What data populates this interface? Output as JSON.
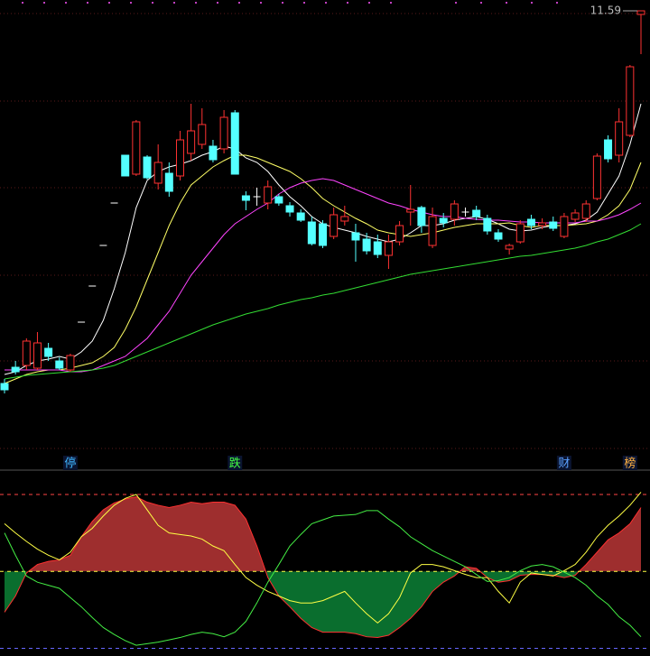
{
  "chart_data": [
    {
      "type": "candlestick",
      "ylim": [
        1.83,
        11.83
      ],
      "up_color": "#ff3232",
      "down_color": "#54ffff",
      "flat_color": "#ffffff",
      "open": [
        3.33,
        3.69,
        3.73,
        3.67,
        4.11,
        3.83,
        3.63,
        4.69,
        5.49,
        6.39,
        7.33,
        8.39,
        7.97,
        8.35,
        7.77,
        7.99,
        7.93,
        8.43,
        8.63,
        8.59,
        8.53,
        9.33,
        7.49,
        7.47,
        7.33,
        7.47,
        7.27,
        7.11,
        6.91,
        6.87,
        6.59,
        6.93,
        6.67,
        6.53,
        6.47,
        6.17,
        6.47,
        7.13,
        7.23,
        6.39,
        6.99,
        6.97,
        7.13,
        7.17,
        6.99,
        6.67,
        6.31,
        6.47,
        6.97,
        6.83,
        6.91,
        6.59,
        6.97,
        6.99,
        7.43,
        8.73,
        8.39,
        8.83,
        11.51
      ],
      "high": [
        3.43,
        3.83,
        4.33,
        4.47,
        4.23,
        3.91,
        3.99,
        4.69,
        5.49,
        6.39,
        7.33,
        8.39,
        9.17,
        8.39,
        8.63,
        8.23,
        8.93,
        9.53,
        9.43,
        8.73,
        9.39,
        9.39,
        7.59,
        7.67,
        7.83,
        7.53,
        7.35,
        7.19,
        7.03,
        6.95,
        7.23,
        7.27,
        6.87,
        6.67,
        6.63,
        6.63,
        6.93,
        7.73,
        7.27,
        7.23,
        7.11,
        7.39,
        7.23,
        7.27,
        7.07,
        6.75,
        6.43,
        6.95,
        7.07,
        6.99,
        7.03,
        7.11,
        7.19,
        7.39,
        8.43,
        8.83,
        9.43,
        10.39,
        11.59
      ],
      "low": [
        3.11,
        3.53,
        3.63,
        3.63,
        3.83,
        3.63,
        3.59,
        4.69,
        5.49,
        6.39,
        7.33,
        7.93,
        7.93,
        7.85,
        7.63,
        7.47,
        7.83,
        8.27,
        8.53,
        8.23,
        8.43,
        7.97,
        7.17,
        7.27,
        7.19,
        7.27,
        7.03,
        6.91,
        6.39,
        6.33,
        6.53,
        6.83,
        6.03,
        6.19,
        6.11,
        5.87,
        6.39,
        6.83,
        6.67,
        6.33,
        6.79,
        6.83,
        7.03,
        6.95,
        6.63,
        6.47,
        6.19,
        6.43,
        6.75,
        6.75,
        6.71,
        6.55,
        6.91,
        6.91,
        7.39,
        8.23,
        8.23,
        8.79,
        10.63
      ],
      "close": [
        3.19,
        3.59,
        4.27,
        4.23,
        3.93,
        3.67,
        3.95,
        4.69,
        5.49,
        6.39,
        7.33,
        7.93,
        9.13,
        7.89,
        8.23,
        7.59,
        8.73,
        8.93,
        9.07,
        8.29,
        9.23,
        7.97,
        7.39,
        7.47,
        7.69,
        7.33,
        7.13,
        6.95,
        6.43,
        6.39,
        7.07,
        7.03,
        6.51,
        6.27,
        6.19,
        6.47,
        6.83,
        7.19,
        6.83,
        7.03,
        6.89,
        7.31,
        7.13,
        7.03,
        6.71,
        6.53,
        6.39,
        6.87,
        6.83,
        6.89,
        6.77,
        7.03,
        7.11,
        7.31,
        8.37,
        8.31,
        9.13,
        10.35,
        11.59
      ],
      "series": [
        {
          "color": "#ffffff",
          "values": [
            3.53,
            3.59,
            3.73,
            3.83,
            3.87,
            3.93,
            3.87,
            4.03,
            4.27,
            4.73,
            5.43,
            6.23,
            7.23,
            7.83,
            8.03,
            8.13,
            8.19,
            8.27,
            8.39,
            8.47,
            8.59,
            8.53,
            8.33,
            8.23,
            8.03,
            7.73,
            7.47,
            7.27,
            7.03,
            6.87,
            6.79,
            6.73,
            6.67,
            6.59,
            6.53,
            6.47,
            6.53,
            6.67,
            6.83,
            6.83,
            6.87,
            6.95,
            6.99,
            7.03,
            6.97,
            6.87,
            6.75,
            6.71,
            6.73,
            6.79,
            6.83,
            6.83,
            6.87,
            6.95,
            7.13,
            7.53,
            7.93,
            8.63,
            9.53
          ]
        },
        {
          "color": "#ffff66",
          "values": [
            3.33,
            3.43,
            3.53,
            3.59,
            3.63,
            3.63,
            3.67,
            3.73,
            3.79,
            3.93,
            4.13,
            4.53,
            5.03,
            5.63,
            6.23,
            6.83,
            7.33,
            7.73,
            7.93,
            8.13,
            8.27,
            8.39,
            8.39,
            8.33,
            8.23,
            8.13,
            8.03,
            7.87,
            7.67,
            7.43,
            7.27,
            7.13,
            6.99,
            6.87,
            6.73,
            6.67,
            6.63,
            6.59,
            6.63,
            6.67,
            6.73,
            6.79,
            6.83,
            6.87,
            6.87,
            6.87,
            6.89,
            6.83,
            6.79,
            6.83,
            6.83,
            6.83,
            6.85,
            6.87,
            6.93,
            7.07,
            7.27,
            7.63,
            8.23
          ]
        },
        {
          "color": "#ff44ff",
          "values": [
            3.63,
            3.63,
            3.63,
            3.63,
            3.63,
            3.63,
            3.59,
            3.59,
            3.63,
            3.73,
            3.83,
            3.93,
            4.13,
            4.33,
            4.63,
            4.93,
            5.33,
            5.73,
            6.03,
            6.33,
            6.63,
            6.87,
            7.03,
            7.19,
            7.33,
            7.53,
            7.67,
            7.77,
            7.83,
            7.87,
            7.83,
            7.73,
            7.63,
            7.53,
            7.43,
            7.33,
            7.27,
            7.19,
            7.13,
            7.07,
            7.03,
            7.03,
            6.99,
            6.97,
            6.95,
            6.95,
            6.93,
            6.91,
            6.91,
            6.89,
            6.89,
            6.89,
            6.89,
            6.93,
            6.93,
            6.99,
            7.07,
            7.19,
            7.33
          ]
        },
        {
          "color": "#33dd33",
          "values": [
            3.43,
            3.47,
            3.51,
            3.53,
            3.55,
            3.57,
            3.59,
            3.61,
            3.63,
            3.67,
            3.73,
            3.83,
            3.93,
            4.03,
            4.13,
            4.23,
            4.33,
            4.43,
            4.53,
            4.63,
            4.71,
            4.79,
            4.87,
            4.93,
            4.99,
            5.07,
            5.13,
            5.19,
            5.23,
            5.29,
            5.33,
            5.39,
            5.45,
            5.51,
            5.57,
            5.63,
            5.69,
            5.75,
            5.79,
            5.83,
            5.87,
            5.91,
            5.95,
            5.99,
            6.03,
            6.07,
            6.11,
            6.15,
            6.17,
            6.21,
            6.25,
            6.29,
            6.33,
            6.39,
            6.47,
            6.53,
            6.63,
            6.73,
            6.87
          ]
        }
      ],
      "max_label": 11.59,
      "signals": [
        null,
        null,
        null,
        null,
        null,
        null,
        {
          "label": "停",
          "color": "#3fb6ff"
        },
        null,
        null,
        null,
        null,
        null,
        null,
        null,
        null,
        null,
        null,
        null,
        null,
        null,
        null,
        {
          "label": "跌",
          "color": "#44ff44"
        },
        null,
        null,
        null,
        null,
        null,
        null,
        null,
        null,
        null,
        null,
        null,
        null,
        null,
        null,
        null,
        null,
        null,
        null,
        null,
        null,
        null,
        null,
        null,
        null,
        null,
        null,
        null,
        null,
        null,
        {
          "label": "财",
          "color": "#5aa0ff"
        },
        null,
        null,
        null,
        null,
        null,
        {
          "label": "榜",
          "color": "#ffb040"
        },
        null
      ]
    },
    {
      "type": "oscillator",
      "ylim": [
        -110,
        127
      ],
      "levels": [
        {
          "value": 100,
          "color": "#ff4444"
        },
        {
          "value": 0,
          "color": "#ffff44"
        },
        {
          "value": -100,
          "color": "#6666ff"
        }
      ],
      "pos_color": "#9e2e2e",
      "neg_color": "#0a6e2e",
      "edge_color": "#ff3030",
      "values": [
        -53,
        -32,
        -2,
        9,
        13,
        15,
        21,
        45,
        65,
        80,
        89,
        94,
        97,
        90,
        86,
        83,
        86,
        90,
        88,
        90,
        90,
        86,
        68,
        33,
        -8,
        -32,
        -46,
        -61,
        -73,
        -79,
        -79,
        -79,
        -81,
        -85,
        -86,
        -83,
        -73,
        -61,
        -46,
        -26,
        -14,
        -6,
        6,
        4,
        -8,
        -14,
        -12,
        -5,
        -4,
        -4,
        -5,
        -8,
        -5,
        9,
        25,
        41,
        50,
        62,
        83
      ],
      "series": [
        {
          "color": "#ffff44",
          "values": [
            62,
            50,
            39,
            29,
            21,
            15,
            25,
            45,
            56,
            72,
            86,
            95,
            100,
            80,
            60,
            50,
            48,
            46,
            42,
            33,
            27,
            9,
            -8,
            -18,
            -26,
            -32,
            -38,
            -41,
            -41,
            -38,
            -32,
            -26,
            -41,
            -55,
            -67,
            -55,
            -34,
            -2,
            9,
            9,
            6,
            1,
            -4,
            -8,
            -8,
            -26,
            -41,
            -14,
            -2,
            -4,
            -6,
            1,
            9,
            25,
            45,
            60,
            72,
            86,
            103
          ]
        },
        {
          "color": "#44ee44",
          "values": [
            50,
            21,
            -6,
            -14,
            -18,
            -22,
            -34,
            -46,
            -60,
            -73,
            -82,
            -90,
            -96,
            -94,
            -92,
            -89,
            -86,
            -82,
            -79,
            -81,
            -85,
            -79,
            -65,
            -41,
            -14,
            9,
            33,
            48,
            62,
            67,
            72,
            73,
            74,
            79,
            79,
            68,
            58,
            45,
            36,
            27,
            20,
            13,
            6,
            -4,
            -13,
            -12,
            -8,
            1,
            7,
            9,
            6,
            -1,
            -8,
            -18,
            -32,
            -43,
            -59,
            -70,
            -85
          ]
        }
      ]
    }
  ]
}
